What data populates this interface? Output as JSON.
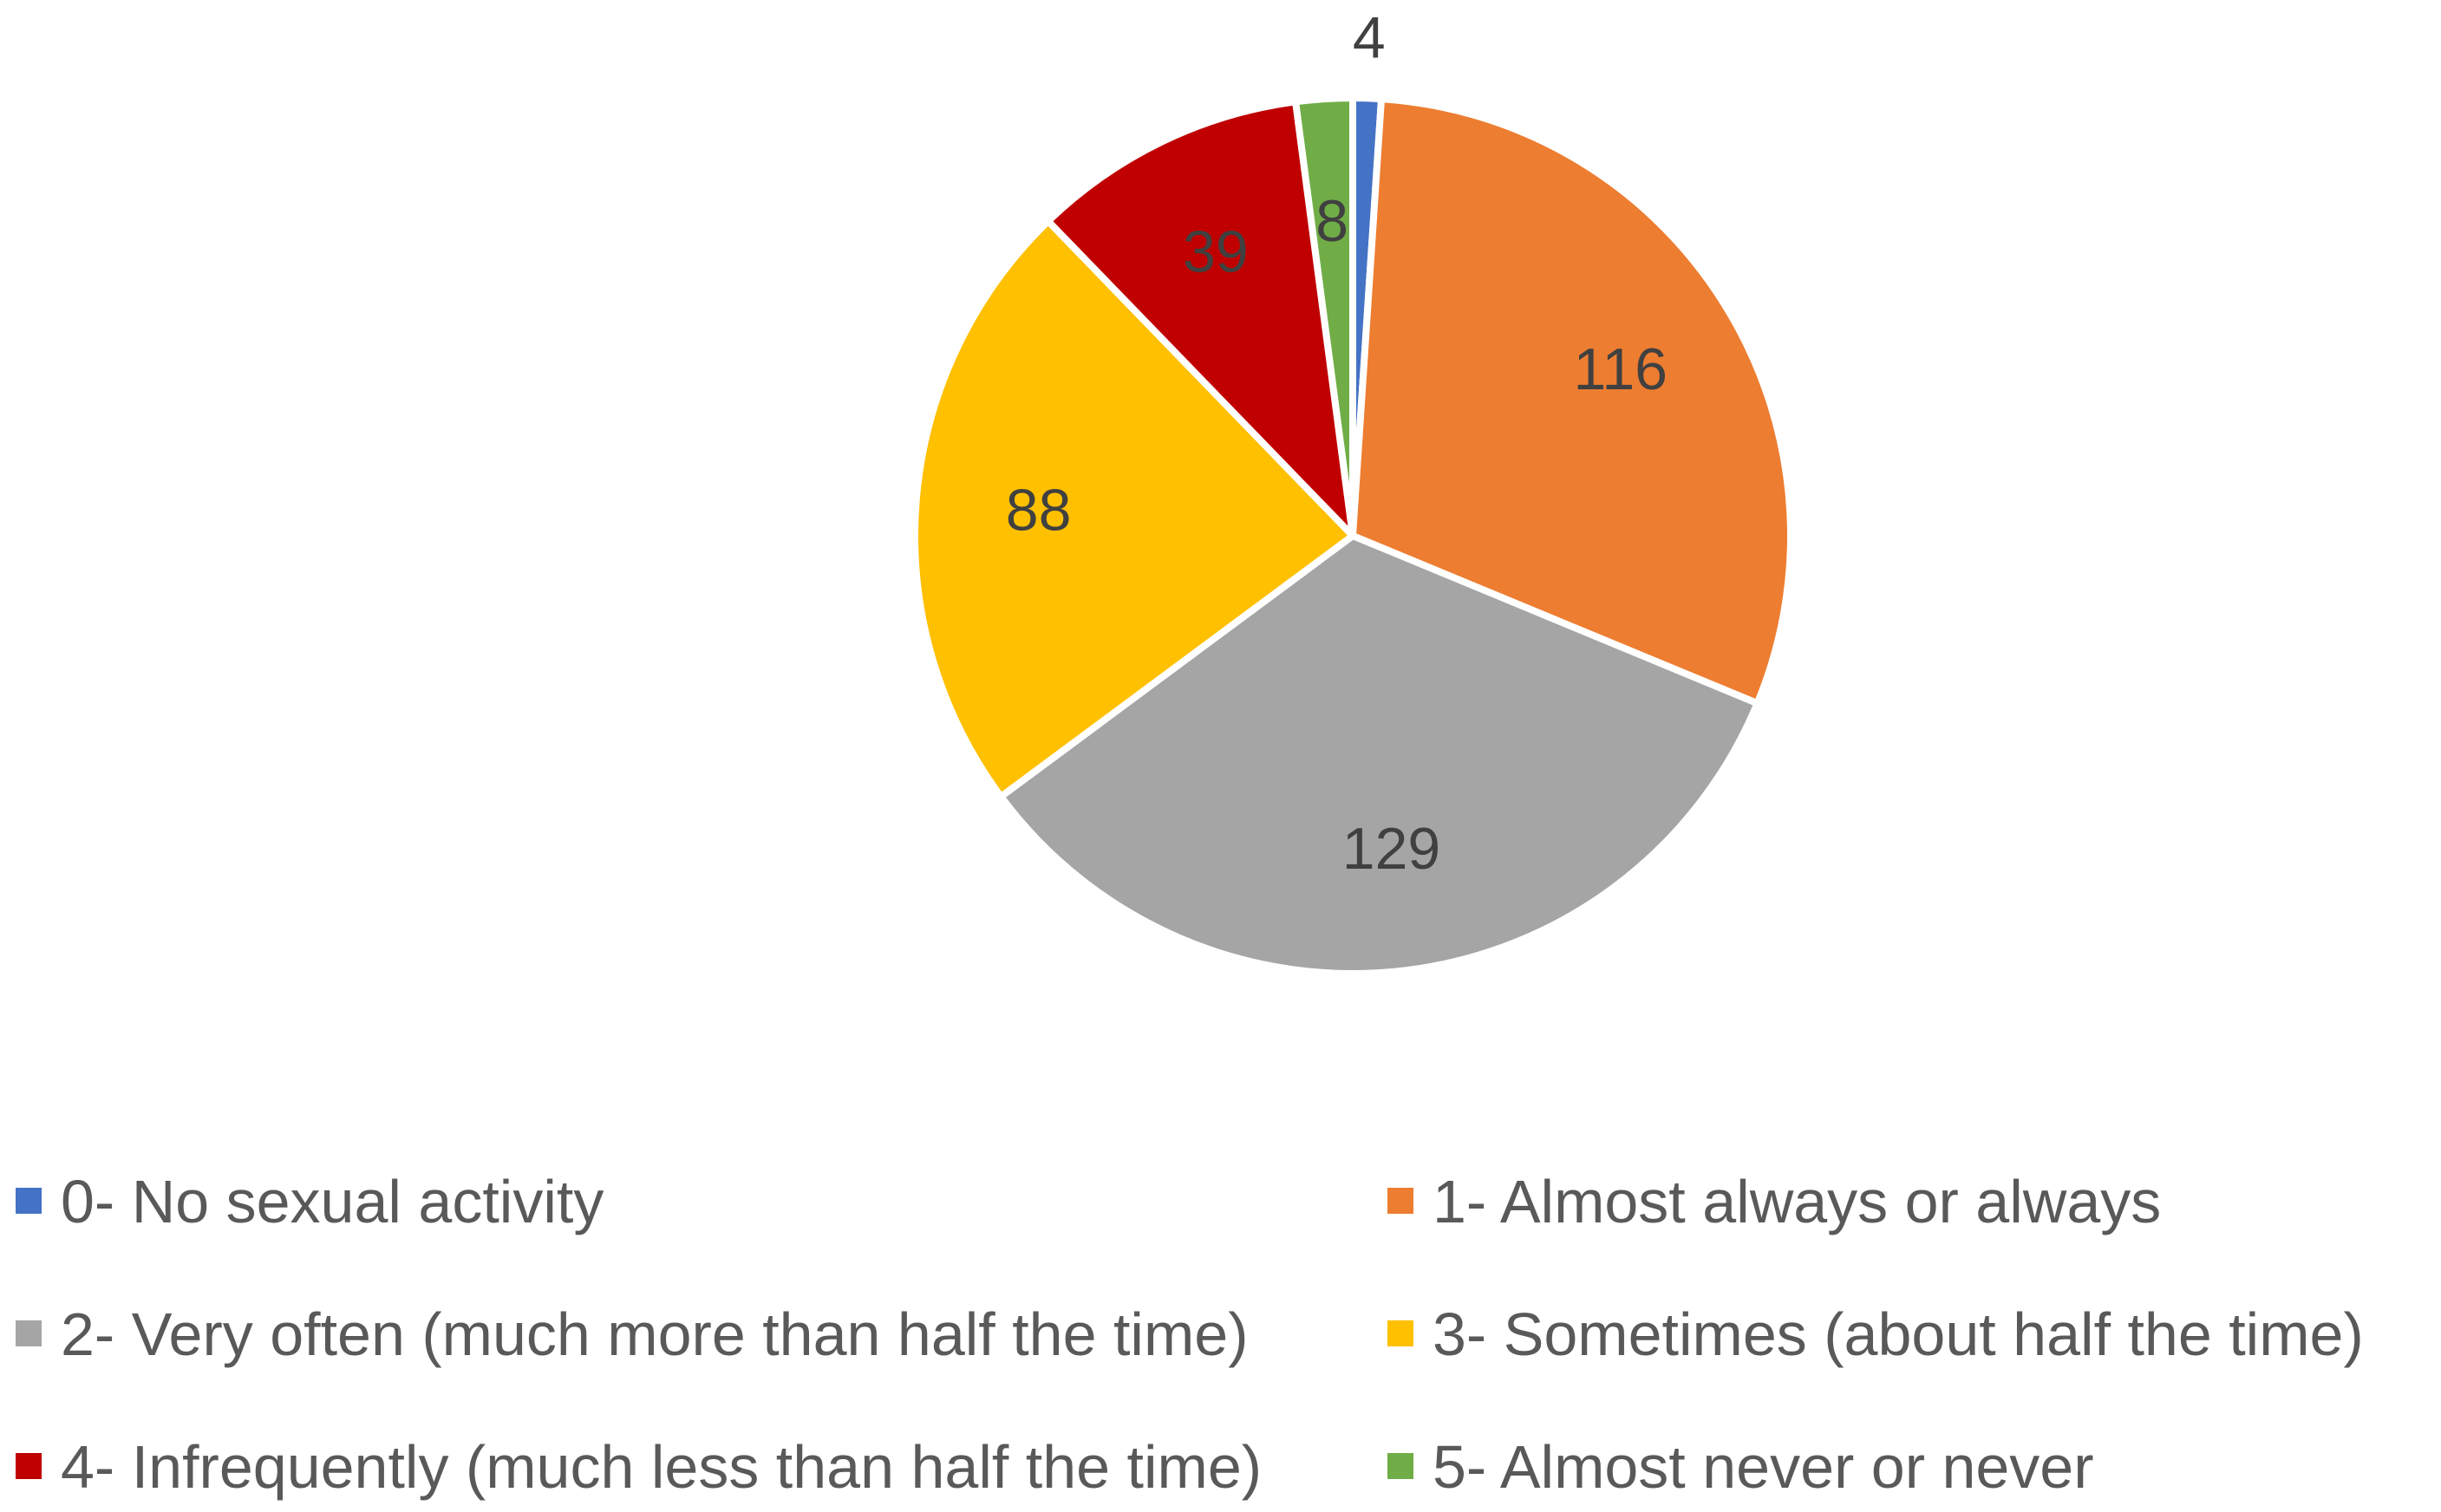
{
  "chart_data": {
    "type": "pie",
    "title": "",
    "categories": [
      "0- No sexual activity",
      "1- Almost always or always",
      "2- Very often (much more than half the time)",
      "3- Sometimes (about half the time)",
      "4- Infrequently (much less than half the time)",
      "5- Almost never or never"
    ],
    "values": [
      4,
      116,
      129,
      88,
      39,
      8
    ],
    "data_labels": [
      "4",
      "116",
      "129",
      "88",
      "39",
      "8"
    ],
    "colors": [
      "#4472C4",
      "#ED7D31",
      "#A5A5A5",
      "#FFC000",
      "#C00000",
      "#70AD47"
    ],
    "start_angle": "12 o'clock, clockwise",
    "legend_position": "bottom",
    "legend_columns": 2
  }
}
